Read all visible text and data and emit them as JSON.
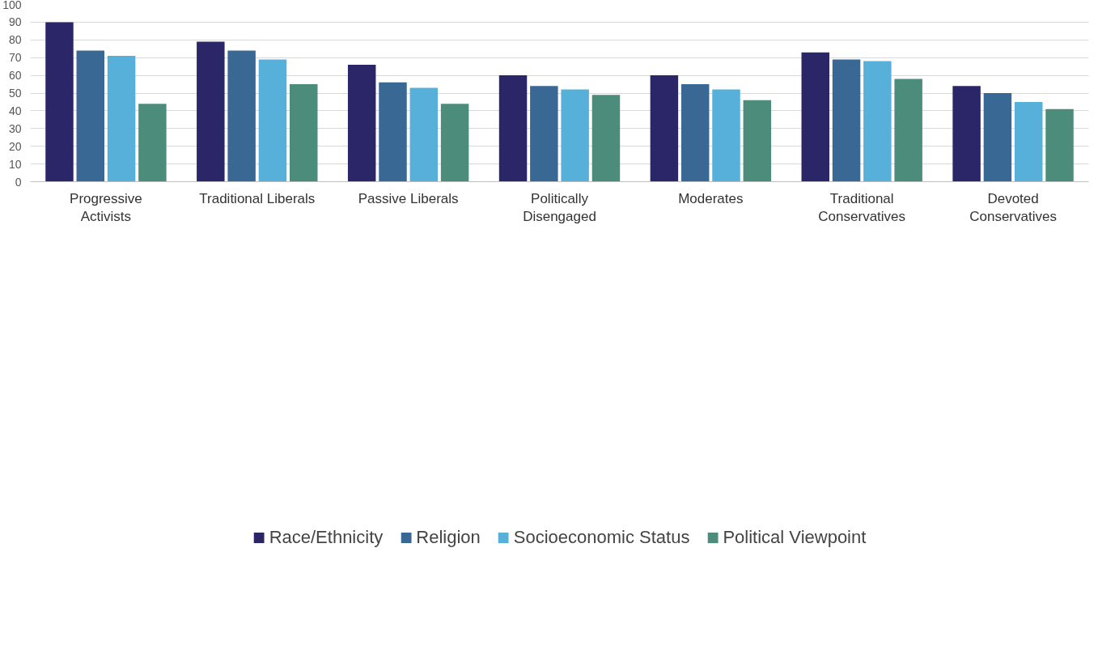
{
  "chart_data": {
    "type": "bar",
    "categories": [
      "Progressive Activists",
      "Traditional Liberals",
      "Passive Liberals",
      "Politically Disengaged",
      "Moderates",
      "Traditional Conservatives",
      "Devoted Conservatives"
    ],
    "series": [
      {
        "name": "Race/Ethnicity",
        "color": "#2b2668",
        "values": [
          90,
          79,
          66,
          60,
          60,
          73,
          54
        ]
      },
      {
        "name": "Religion",
        "color": "#3a6894",
        "values": [
          74,
          74,
          56,
          54,
          55,
          69,
          50
        ]
      },
      {
        "name": "Socioeconomic Status",
        "color": "#56b0da",
        "values": [
          71,
          69,
          53,
          52,
          52,
          68,
          45
        ]
      },
      {
        "name": "Political Viewpoint",
        "color": "#4b8c7a",
        "values": [
          44,
          55,
          44,
          49,
          46,
          58,
          41
        ]
      }
    ],
    "ylim": [
      0,
      100
    ],
    "yticks": [
      0,
      10,
      20,
      30,
      40,
      50,
      60,
      70,
      80,
      90,
      100
    ],
    "grid": "y",
    "legend": "bottom"
  }
}
